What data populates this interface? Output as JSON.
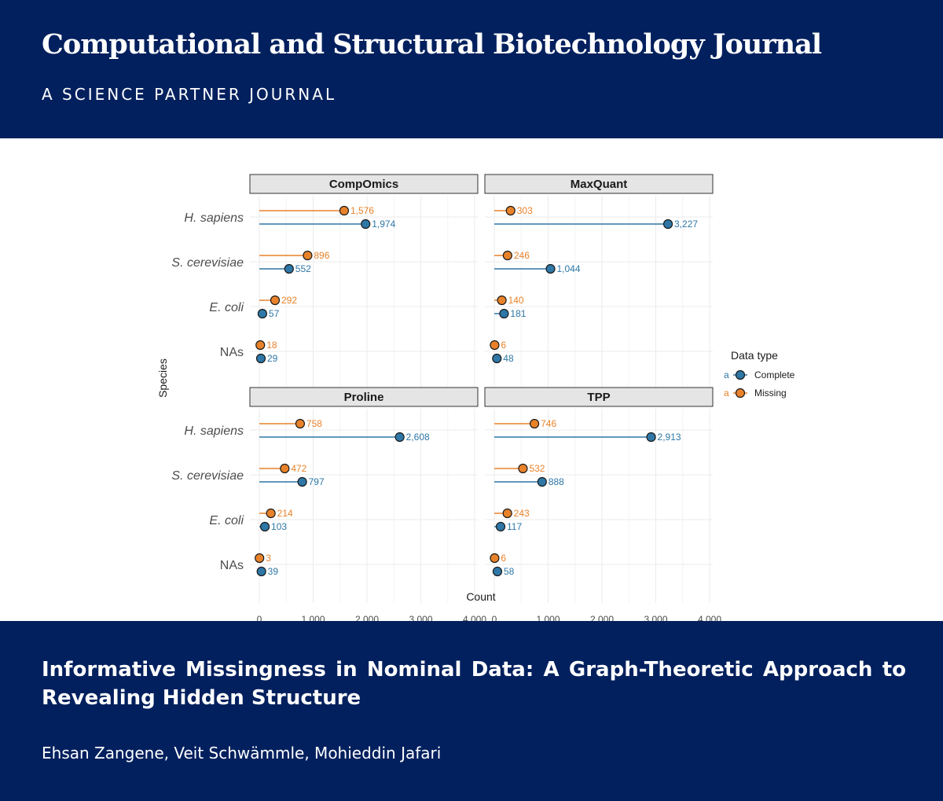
{
  "header": {
    "journal_title": "Computational and Structural Biotechnology Journal",
    "journal_subtitle": "A SCIENCE PARTNER JOURNAL"
  },
  "article": {
    "title": "Informative Missingness in Nominal Data: A Graph-Theoretic Approach to Revealing Hidden Structure",
    "authors": "Ehsan Zangene, Veit Schwämmle, Mohieddin Jafari"
  },
  "colors": {
    "header_bg": "#02205e",
    "complete": "#2e77a6",
    "missing": "#e8822a",
    "strip_bg": "#e5e5e5",
    "grid": "#ebebeb"
  },
  "chart_data": {
    "type": "lollipop",
    "xlabel": "Count",
    "ylabel": "Species",
    "xlim": [
      0,
      4000
    ],
    "x_ticks": [
      "0",
      "1,000",
      "2,000",
      "3,000",
      "4,000"
    ],
    "categories": [
      "H. sapiens",
      "S. cerevisiae",
      "E. coli",
      "NAs"
    ],
    "legend": {
      "title": "Data type",
      "position": "right",
      "glyph": "a",
      "entries": [
        "Complete",
        "Missing"
      ]
    },
    "panels": [
      {
        "name": "CompOmics",
        "series": [
          {
            "name": "Complete",
            "values": [
              1974,
              552,
              57,
              29
            ],
            "labels": [
              "1,974",
              "552",
              "57",
              "29"
            ]
          },
          {
            "name": "Missing",
            "values": [
              1576,
              896,
              292,
              18
            ],
            "labels": [
              "1,576",
              "896",
              "292",
              "18"
            ]
          }
        ]
      },
      {
        "name": "MaxQuant",
        "series": [
          {
            "name": "Complete",
            "values": [
              3227,
              1044,
              181,
              48
            ],
            "labels": [
              "3,227",
              "1,044",
              "181",
              "48"
            ]
          },
          {
            "name": "Missing",
            "values": [
              303,
              246,
              140,
              6
            ],
            "labels": [
              "303",
              "246",
              "140",
              "6"
            ]
          }
        ]
      },
      {
        "name": "Proline",
        "series": [
          {
            "name": "Complete",
            "values": [
              2608,
              797,
              103,
              39
            ],
            "labels": [
              "2,608",
              "797",
              "103",
              "39"
            ]
          },
          {
            "name": "Missing",
            "values": [
              758,
              472,
              214,
              3
            ],
            "labels": [
              "758",
              "472",
              "214",
              "3"
            ]
          }
        ]
      },
      {
        "name": "TPP",
        "series": [
          {
            "name": "Complete",
            "values": [
              2913,
              888,
              117,
              58
            ],
            "labels": [
              "2,913",
              "888",
              "117",
              "58"
            ]
          },
          {
            "name": "Missing",
            "values": [
              746,
              532,
              243,
              6
            ],
            "labels": [
              "746",
              "532",
              "243",
              "6"
            ]
          }
        ]
      }
    ]
  }
}
